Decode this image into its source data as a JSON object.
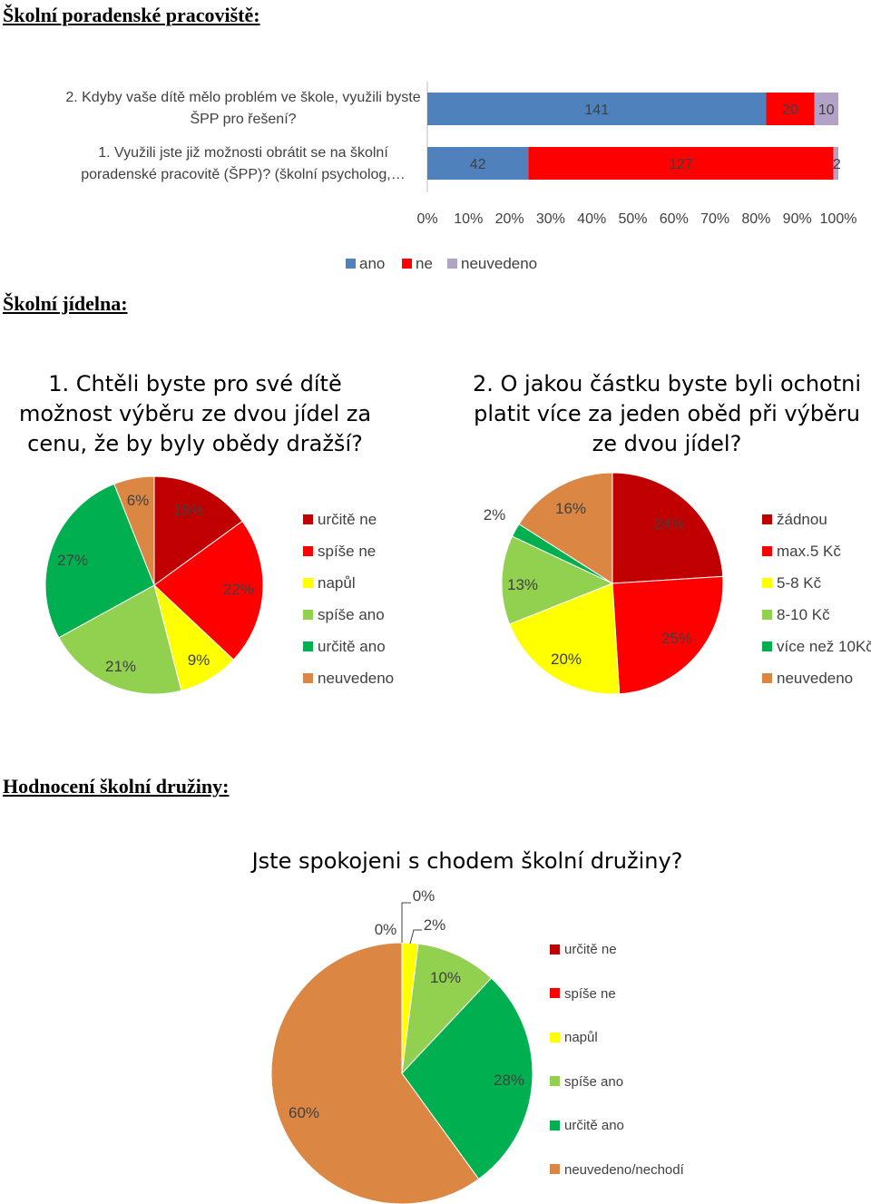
{
  "sections": {
    "spp_title": "Školní poradenské pracoviště:",
    "jidelna_title": "Školní jídelna:",
    "druzina_title": "Hodnocení školní družiny:"
  },
  "chart_data": [
    {
      "type": "bar",
      "orientation": "horizontal",
      "stacked": "percent",
      "categories": [
        "2. Kdyby vaše dítě mělo problém ve škole, využili byste ŠPP pro řešení?",
        "1. Využili jste již možnosti obrátit se na školní poradenské pracovitě (ŠPP)? (školní psycholog,…"
      ],
      "category_lines": [
        [
          "2. Kdyby vaše dítě mělo problém ve škole, využili byste",
          "ŠPP pro řešení?"
        ],
        [
          "1. Využili jste již možnosti obrátit se na školní",
          "poradenské pracovitě (ŠPP)? (školní psycholog,…"
        ]
      ],
      "series": [
        {
          "name": "ano",
          "color": "#4F81BD",
          "values": [
            141,
            42
          ]
        },
        {
          "name": "ne",
          "color": "#FF0000",
          "values": [
            20,
            127
          ]
        },
        {
          "name": "neuvedeno",
          "color": "#B3A2C7",
          "values": [
            10,
            2
          ]
        }
      ],
      "x_ticks": [
        "0%",
        "10%",
        "20%",
        "30%",
        "40%",
        "50%",
        "60%",
        "70%",
        "80%",
        "90%",
        "100%"
      ],
      "legend": "bottom"
    },
    {
      "type": "pie",
      "title": "1. Chtěli byste pro své dítě možnost výběru ze dvou jídel za cenu, že by byly obědy dražší?",
      "title_lines": [
        "1. Chtěli byste pro své dítě",
        "možnost výběru ze dvou jídel za",
        "cenu, že by byly obědy dražší?"
      ],
      "slices": [
        {
          "name": "určitě ne",
          "value": 15,
          "label": "15%",
          "color": "#C00000"
        },
        {
          "name": "spíše ne",
          "value": 22,
          "label": "22%",
          "color": "#FF0000"
        },
        {
          "name": "napůl",
          "value": 9,
          "label": "9%",
          "color": "#FFFF00"
        },
        {
          "name": "spíše ano",
          "value": 21,
          "label": "21%",
          "color": "#92D050"
        },
        {
          "name": "určitě ano",
          "value": 27,
          "label": "27%",
          "color": "#00B050"
        },
        {
          "name": "neuvedeno",
          "value": 6,
          "label": "6%",
          "color": "#DB8743"
        }
      ],
      "legend": "right"
    },
    {
      "type": "pie",
      "title": "2. O jakou částku byste byli ochotni platit více za jeden oběd při výběru ze dvou jídel?",
      "title_lines": [
        "2. O jakou částku byste byli ochotni",
        "platit více za jeden oběd při výběru",
        "ze dvou jídel?"
      ],
      "slices": [
        {
          "name": "žádnou",
          "value": 24,
          "label": "24%",
          "color": "#C00000"
        },
        {
          "name": "max.5 Kč",
          "value": 25,
          "label": "25%",
          "color": "#FF0000"
        },
        {
          "name": "5-8 Kč",
          "value": 20,
          "label": "20%",
          "color": "#FFFF00"
        },
        {
          "name": "8-10 Kč",
          "value": 13,
          "label": "13%",
          "color": "#92D050"
        },
        {
          "name": "více než 10Kč",
          "value": 2,
          "label": "2%",
          "color": "#00B050"
        },
        {
          "name": "neuvedeno",
          "value": 16,
          "label": "16%",
          "color": "#DB8743"
        }
      ],
      "legend": "right"
    },
    {
      "type": "pie",
      "title": "Jste spokojeni s chodem školní družiny?",
      "slices": [
        {
          "name": "určitě ne",
          "value": 0,
          "label": "0%",
          "color": "#C00000"
        },
        {
          "name": "spíše ne",
          "value": 0,
          "label": "0%",
          "color": "#FF0000"
        },
        {
          "name": "napůl",
          "value": 2,
          "label": "2%",
          "color": "#FFFF00"
        },
        {
          "name": "spíše ano",
          "value": 10,
          "label": "10%",
          "color": "#92D050"
        },
        {
          "name": "určitě ano",
          "value": 28,
          "label": "28%",
          "color": "#00B050"
        },
        {
          "name": "neuvedeno/nechodí",
          "value": 60,
          "label": "60%",
          "color": "#DB8743"
        }
      ],
      "legend": "right"
    }
  ]
}
